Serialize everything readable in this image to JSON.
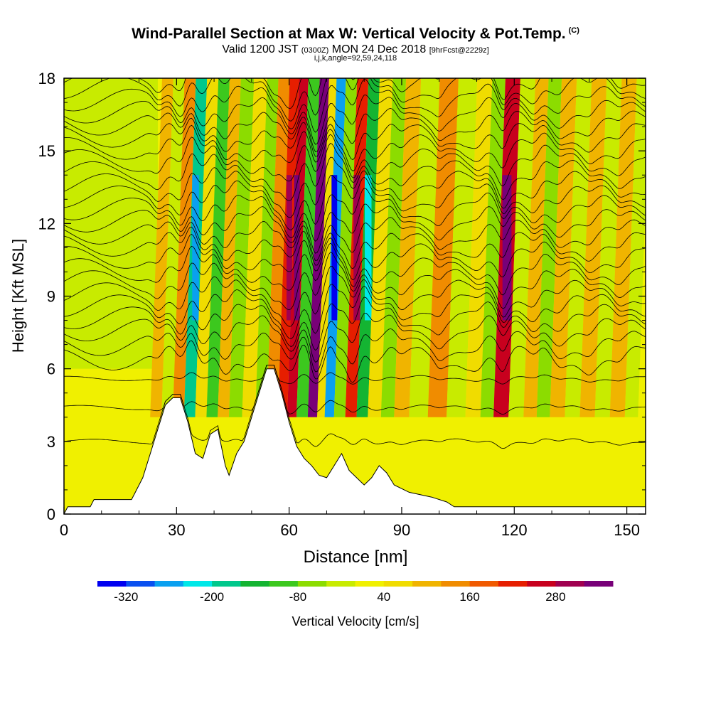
{
  "header": {
    "title": "Wind-Parallel Section at Max W: Vertical Velocity & Pot.Temp.",
    "copyright": "(C)",
    "valid_prefix": "Valid 1200 JST",
    "valid_utc": "(0300Z)",
    "valid_date": "MON 24 Dec 2018",
    "forecast": "[9hrFcst@2229z]",
    "indices": "i,j,k,angle=92,59,24,118"
  },
  "colors": {
    "palette": [
      "#0000f0",
      "#0a50f0",
      "#0aa0f0",
      "#00e8e8",
      "#00c88c",
      "#14b432",
      "#3cc81e",
      "#8cdc00",
      "#c8eb00",
      "#f0f000",
      "#f0dc00",
      "#f0b400",
      "#f08c00",
      "#f05a00",
      "#e61e00",
      "#c8001e",
      "#a00050",
      "#780078"
    ],
    "terrain": "#ffffff"
  },
  "chart_data": {
    "type": "heatmap",
    "xlabel": "Distance [nm]",
    "ylabel": "Height [Kft MSL]",
    "xlim": [
      0,
      155
    ],
    "ylim": [
      0,
      18
    ],
    "xticks": [
      0,
      30,
      60,
      90,
      120,
      150
    ],
    "yticks": [
      0,
      3,
      6,
      9,
      12,
      15,
      18
    ],
    "grid": false,
    "colorbar": {
      "label": "Vertical Velocity [cm/s]",
      "levels": [
        -320,
        -280,
        -240,
        -200,
        -160,
        -120,
        -80,
        -40,
        0,
        40,
        80,
        120,
        160,
        200,
        240,
        280,
        320
      ],
      "tick_labels": [
        "-320",
        "-200",
        "-80",
        "40",
        "160",
        "280"
      ]
    },
    "bands": [
      {
        "x": 25,
        "w": 100
      },
      {
        "x": 28,
        "w": -40
      },
      {
        "x": 31,
        "w": 120
      },
      {
        "x": 34,
        "w": -200
      },
      {
        "x": 37,
        "w": 60
      },
      {
        "x": 40,
        "w": -120
      },
      {
        "x": 43,
        "w": 80
      },
      {
        "x": 46,
        "w": -80
      },
      {
        "x": 50,
        "w": 40
      },
      {
        "x": 53,
        "w": -60
      },
      {
        "x": 56,
        "w": 120
      },
      {
        "x": 59,
        "w": 200
      },
      {
        "x": 61,
        "w": 260
      },
      {
        "x": 64,
        "w": -120
      },
      {
        "x": 67,
        "w": 320
      },
      {
        "x": 69,
        "w": 40
      },
      {
        "x": 71,
        "w": -280
      },
      {
        "x": 74,
        "w": -80
      },
      {
        "x": 77,
        "w": 200
      },
      {
        "x": 80,
        "w": -160
      },
      {
        "x": 83,
        "w": 40
      },
      {
        "x": 87,
        "w": -80
      },
      {
        "x": 90,
        "w": 80
      },
      {
        "x": 95,
        "w": -40
      },
      {
        "x": 100,
        "w": 120
      },
      {
        "x": 105,
        "w": -40
      },
      {
        "x": 110,
        "w": 40
      },
      {
        "x": 113,
        "w": -80
      },
      {
        "x": 117,
        "w": 240
      },
      {
        "x": 121,
        "w": -40
      },
      {
        "x": 125,
        "w": 80
      },
      {
        "x": 128,
        "w": -80
      },
      {
        "x": 132,
        "w": 80
      },
      {
        "x": 136,
        "w": -40
      },
      {
        "x": 140,
        "w": 80
      },
      {
        "x": 144,
        "w": -40
      },
      {
        "x": 148,
        "w": 80
      },
      {
        "x": 152,
        "w": -40
      }
    ],
    "terrain": [
      [
        0,
        0
      ],
      [
        1,
        0.3
      ],
      [
        7,
        0.3
      ],
      [
        8,
        0.6
      ],
      [
        18,
        0.6
      ],
      [
        19,
        0.9
      ],
      [
        21,
        1.5
      ],
      [
        23,
        2.5
      ],
      [
        25,
        3.5
      ],
      [
        27,
        4.5
      ],
      [
        29,
        4.8
      ],
      [
        31,
        4.8
      ],
      [
        33,
        3.8
      ],
      [
        35,
        2.5
      ],
      [
        37,
        2.3
      ],
      [
        39,
        3.3
      ],
      [
        41,
        3.5
      ],
      [
        43,
        2.0
      ],
      [
        44,
        1.6
      ],
      [
        46,
        2.5
      ],
      [
        48,
        3.0
      ],
      [
        50,
        4.0
      ],
      [
        52,
        5.0
      ],
      [
        54,
        6.0
      ],
      [
        56,
        6.0
      ],
      [
        58,
        5.0
      ],
      [
        60,
        3.8
      ],
      [
        62,
        2.8
      ],
      [
        64,
        2.3
      ],
      [
        66,
        2.0
      ],
      [
        68,
        1.6
      ],
      [
        70,
        1.5
      ],
      [
        72,
        2.0
      ],
      [
        74,
        2.5
      ],
      [
        76,
        1.8
      ],
      [
        78,
        1.5
      ],
      [
        80,
        1.2
      ],
      [
        82,
        1.5
      ],
      [
        84,
        2.0
      ],
      [
        86,
        1.7
      ],
      [
        88,
        1.2
      ],
      [
        92,
        0.9
      ],
      [
        98,
        0.7
      ],
      [
        102,
        0.5
      ],
      [
        104,
        0.3
      ],
      [
        110,
        0.3
      ],
      [
        155,
        0.3
      ]
    ]
  }
}
